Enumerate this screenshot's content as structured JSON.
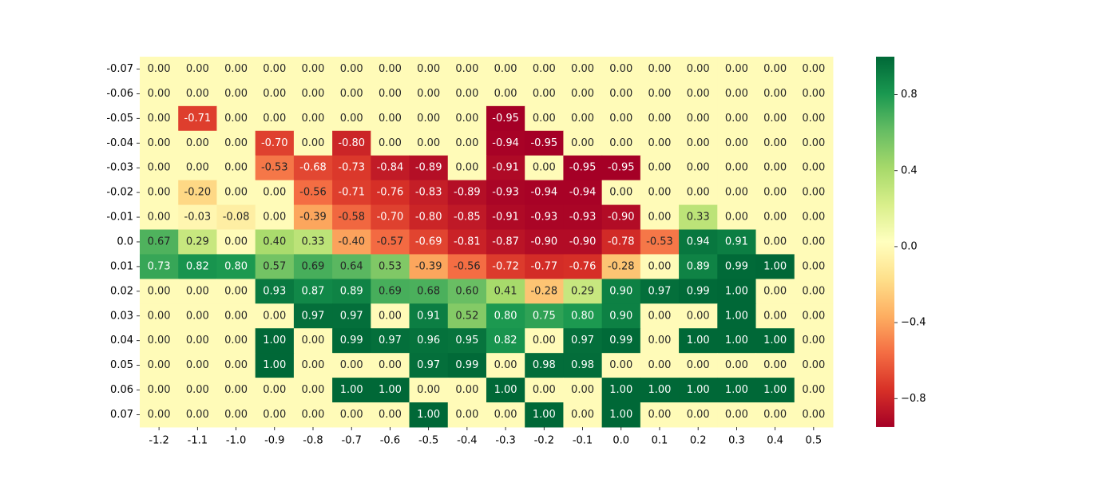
{
  "chart_data": {
    "type": "heatmap",
    "title": "",
    "xlabel": "",
    "ylabel": "",
    "x_categories": [
      "-1.2",
      "-1.1",
      "-1.0",
      "-0.9",
      "-0.8",
      "-0.7",
      "-0.6",
      "-0.5",
      "-0.4",
      "-0.3",
      "-0.2",
      "-0.1",
      "0.0",
      "0.1",
      "0.2",
      "0.3",
      "0.4",
      "0.5"
    ],
    "y_categories": [
      "-0.07",
      "-0.06",
      "-0.05",
      "-0.04",
      "-0.03",
      "-0.02",
      "-0.01",
      "0.0",
      "0.01",
      "0.02",
      "0.03",
      "0.04",
      "0.05",
      "0.06",
      "0.07"
    ],
    "values": [
      [
        0,
        0,
        0,
        0,
        0,
        0,
        0,
        0,
        0,
        0,
        0,
        0,
        0,
        0,
        0,
        0,
        0,
        0
      ],
      [
        0,
        0,
        0,
        0,
        0,
        0,
        0,
        0,
        0,
        0,
        0,
        0,
        0,
        0,
        0,
        0,
        0,
        0
      ],
      [
        0,
        -0.71,
        0,
        0,
        0,
        0,
        0,
        0,
        0,
        -0.95,
        0,
        0,
        0,
        0,
        0,
        0,
        0,
        0
      ],
      [
        0,
        0,
        0,
        -0.7,
        0,
        -0.8,
        0,
        0,
        0,
        -0.94,
        -0.95,
        0,
        0,
        0,
        0,
        0,
        0,
        0
      ],
      [
        0,
        0,
        0,
        -0.53,
        -0.68,
        -0.73,
        -0.84,
        -0.89,
        0,
        -0.91,
        0,
        -0.95,
        -0.95,
        0,
        0,
        0,
        0,
        0
      ],
      [
        0,
        -0.2,
        0,
        0,
        -0.56,
        -0.71,
        -0.76,
        -0.83,
        -0.89,
        -0.93,
        -0.94,
        -0.94,
        0,
        0,
        0,
        0,
        0,
        0
      ],
      [
        0,
        -0.03,
        -0.08,
        0,
        -0.39,
        -0.58,
        -0.7,
        -0.8,
        -0.85,
        -0.91,
        -0.93,
        -0.93,
        -0.9,
        0,
        0.33,
        0,
        0,
        0
      ],
      [
        0.67,
        0.29,
        0,
        0.4,
        0.33,
        -0.4,
        -0.57,
        -0.69,
        -0.81,
        -0.87,
        -0.9,
        -0.9,
        -0.78,
        -0.53,
        0.94,
        0.91,
        0,
        0
      ],
      [
        0.73,
        0.82,
        0.8,
        0.57,
        0.69,
        0.64,
        0.53,
        -0.39,
        -0.56,
        -0.72,
        -0.77,
        -0.76,
        -0.28,
        0,
        0.89,
        0.99,
        1.0,
        0
      ],
      [
        0,
        0,
        0,
        0.93,
        0.87,
        0.89,
        0.69,
        0.68,
        0.6,
        0.41,
        -0.28,
        0.29,
        0.9,
        0.97,
        0.99,
        1.0,
        0,
        0
      ],
      [
        0,
        0,
        0,
        0,
        0.97,
        0.97,
        0,
        0.91,
        0.52,
        0.8,
        0.75,
        0.8,
        0.9,
        0,
        0,
        1.0,
        0,
        0
      ],
      [
        0,
        0,
        0,
        1.0,
        0,
        0.99,
        0.97,
        0.96,
        0.95,
        0.82,
        0,
        0.97,
        0.99,
        0,
        1.0,
        1.0,
        1.0,
        0
      ],
      [
        0,
        0,
        0,
        1.0,
        0,
        0,
        0,
        0.97,
        0.99,
        0,
        0.98,
        0.98,
        0,
        0,
        0,
        0,
        0,
        0
      ],
      [
        0,
        0,
        0,
        0,
        0,
        1.0,
        1.0,
        0,
        0,
        1.0,
        0,
        0,
        1.0,
        1.0,
        1.0,
        1.0,
        1.0,
        0
      ],
      [
        0,
        0,
        0,
        0,
        0,
        0,
        0,
        1.0,
        0,
        0,
        1.0,
        0,
        1.0,
        0,
        0,
        0,
        0,
        0
      ]
    ],
    "value_format": "0.00",
    "colormap": "RdYlGn",
    "vmin": -0.95,
    "vmax": 1.0,
    "colorbar": {
      "ticks": [
        0.8,
        0.4,
        0.0,
        -0.4,
        -0.8
      ],
      "tick_labels": [
        "0.8",
        "0.4",
        "0.0",
        "−0.4",
        "−0.8"
      ]
    },
    "grid": false,
    "legend": "colorbar-right"
  }
}
